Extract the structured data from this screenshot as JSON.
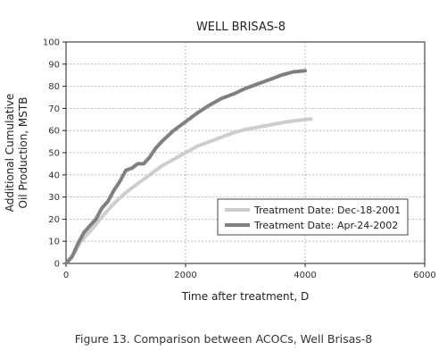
{
  "chart_data": {
    "type": "line",
    "title": "WELL BRISAS-8",
    "xlabel": "Time after treatment, D",
    "ylabel_lines": [
      "Additional Cumulative",
      "Oil Production, MSTB"
    ],
    "xlim": [
      0,
      6000
    ],
    "ylim": [
      0,
      100
    ],
    "x_ticks": [
      0,
      2000,
      4000,
      6000
    ],
    "y_ticks": [
      0,
      10,
      20,
      30,
      40,
      50,
      60,
      70,
      80,
      90,
      100
    ],
    "grid": true,
    "legend_position": "bottom-right",
    "series": [
      {
        "name": "Treatment Date: Dec-18-2001",
        "color": "#cdcdcd",
        "x": [
          0,
          50,
          150,
          250,
          350,
          450,
          600,
          800,
          1000,
          1200,
          1400,
          1600,
          1800,
          2000,
          2200,
          2400,
          2600,
          2800,
          3000,
          3200,
          3400,
          3600,
          3800,
          4000,
          4100
        ],
        "y": [
          0,
          1.5,
          5,
          10,
          13,
          16,
          21,
          27,
          32,
          36,
          40,
          44,
          47,
          50,
          53,
          55,
          57,
          59,
          60.5,
          61.5,
          62.5,
          63.5,
          64.3,
          65,
          65.2
        ]
      },
      {
        "name": "Treatment Date: Apr-24-2002",
        "color": "#808080",
        "x": [
          0,
          100,
          200,
          300,
          400,
          500,
          600,
          700,
          800,
          900,
          1000,
          1100,
          1200,
          1300,
          1400,
          1500,
          1600,
          1800,
          2000,
          2200,
          2400,
          2600,
          2800,
          3000,
          3200,
          3400,
          3600,
          3800,
          4000
        ],
        "y": [
          0,
          3,
          9,
          14,
          17,
          20,
          25,
          28,
          33,
          37,
          42,
          43,
          45,
          45,
          48,
          52,
          55,
          60,
          64,
          68,
          71.5,
          74.5,
          76.5,
          79,
          81,
          83,
          85,
          86.5,
          87
        ]
      }
    ]
  },
  "caption": "Figure 13. Comparison between ACOCs, Well Brisas-8"
}
